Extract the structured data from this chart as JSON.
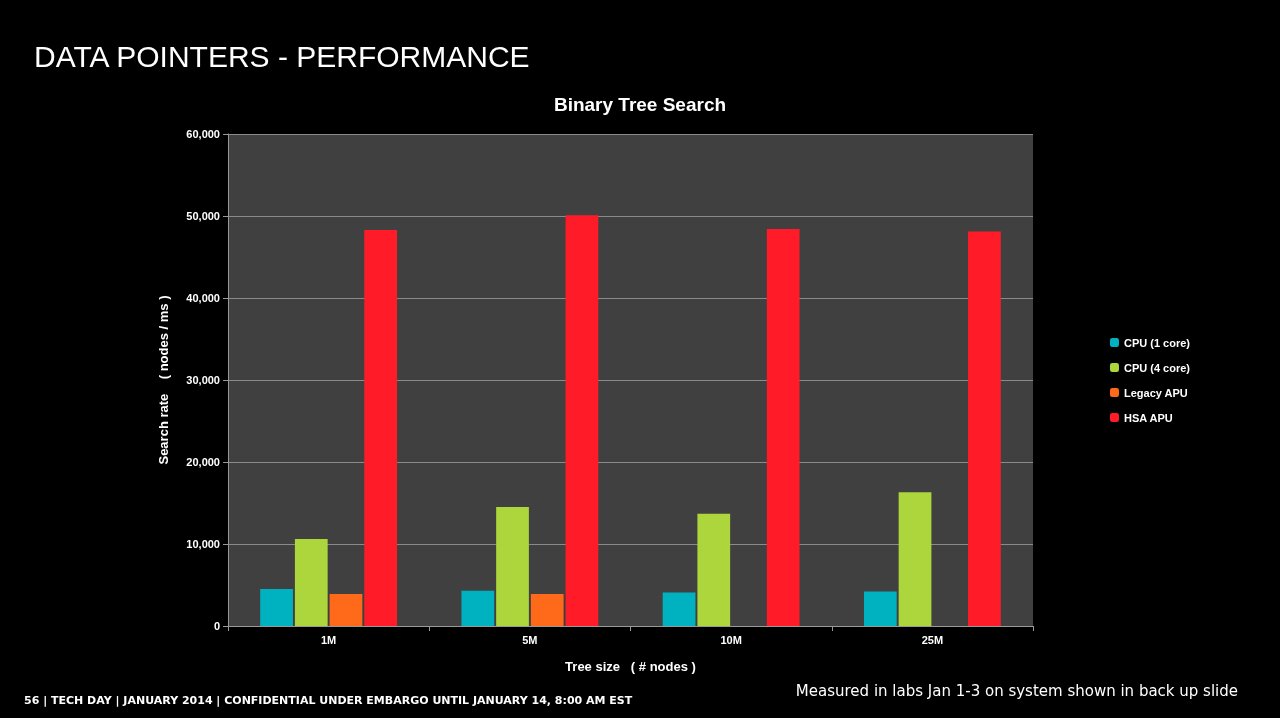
{
  "chart_data": {
    "type": "bar",
    "title": "DATA POINTERS - PERFORMANCE",
    "subtitle": "Binary Tree Search",
    "xlabel": "Tree size   ( # nodes )",
    "ylabel": "Search rate    ( nodes / ms )",
    "categories": [
      "1M",
      "5M",
      "10M",
      "25M"
    ],
    "series": [
      {
        "name": "CPU (1 core)",
        "color": "#00b2c0",
        "values": [
          4500,
          4300,
          4100,
          4200
        ]
      },
      {
        "name": "CPU (4 core)",
        "color": "#acd63c",
        "values": [
          10600,
          14500,
          13700,
          16300
        ]
      },
      {
        "name": "Legacy APU",
        "color": "#ff6a1a",
        "values": [
          3900,
          3900,
          null,
          null
        ]
      },
      {
        "name": "HSA APU",
        "color": "#ff1c28",
        "values": [
          48300,
          50100,
          48400,
          48100
        ]
      }
    ],
    "ylim": [
      0,
      60000
    ],
    "yticks": [
      0,
      {
        "value": 10000,
        "label": "10,000"
      },
      {
        "value": 20000,
        "label": "20,000"
      },
      {
        "value": 30000,
        "label": "30,000"
      },
      {
        "value": 40000,
        "label": "40,000"
      },
      {
        "value": 50000,
        "label": "50,000"
      },
      {
        "value": 60000,
        "label": "60,000"
      }
    ],
    "grid": "y",
    "legend": "right",
    "annotations": [
      "56  |  TECH DAY  |  JANUARY 2014  |  CONFIDENTIAL UNDER EMBARGO UNTIL JANUARY 14, 8:00 AM EST",
      "Measured in labs Jan 1-3 on system shown in back up slide"
    ]
  }
}
